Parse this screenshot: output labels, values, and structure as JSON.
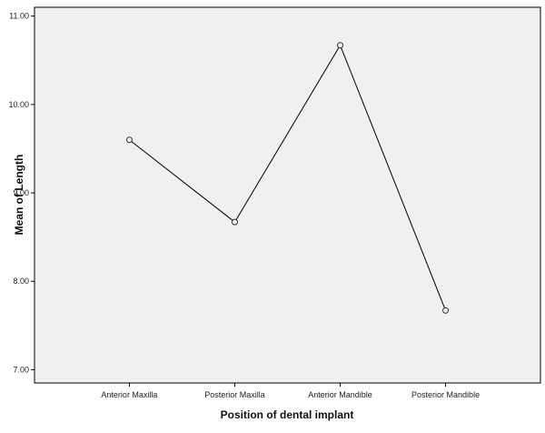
{
  "chart_data": {
    "type": "line",
    "xlabel": "Position of dental implant",
    "ylabel": "Mean of Length",
    "categories": [
      "Anterior Maxilla",
      "Posterior Maxilla",
      "Anterior Mandible",
      "Posterior Mandible"
    ],
    "values": [
      9.6,
      8.67,
      10.67,
      7.67
    ],
    "ylim": [
      6.85,
      11.1
    ],
    "yticks": [
      7.0,
      8.0,
      9.0,
      10.0,
      11.0
    ],
    "ytick_labels": [
      "7.00",
      "8.00",
      "9.00",
      "10.00",
      "11.00"
    ],
    "grid": false,
    "marker": "open-circle",
    "colors": {
      "plot_background": "#f0f0f0",
      "line": "#000000",
      "frame": "#000000"
    }
  }
}
